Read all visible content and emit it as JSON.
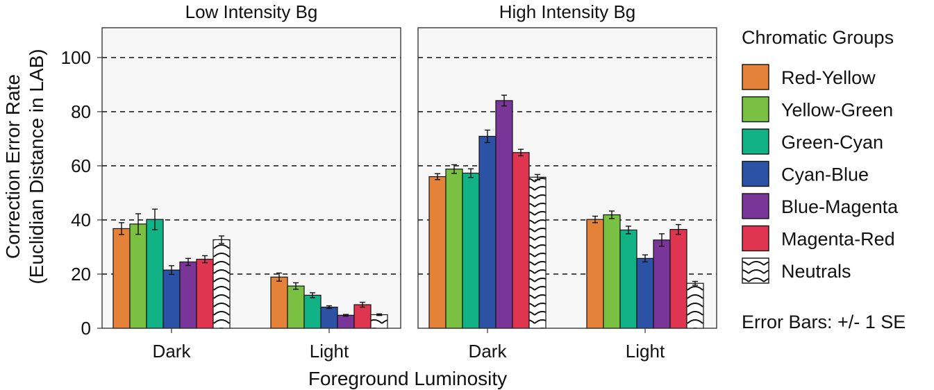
{
  "chart_data": {
    "type": "bar",
    "facets": [
      "Low Intensity Bg",
      "High Intensity Bg"
    ],
    "categories": [
      "Dark",
      "Light"
    ],
    "xlabel": "Foreground Luminosity",
    "ylabel_line1": "Correction Error Rate",
    "ylabel_line2": "(Euclidian Distance in LAB)",
    "ylim": [
      0,
      111
    ],
    "yticks": [
      "0",
      "20",
      "40",
      "60",
      "80",
      "100"
    ],
    "ytick_values": [
      0,
      20,
      40,
      60,
      80,
      100
    ],
    "gridlines": [
      20,
      40,
      60,
      80,
      100
    ],
    "grid_style": "dashed",
    "legend_title": "Chromatic Groups",
    "legend_position": "right",
    "note": "Error Bars: +/- 1 SE",
    "series": [
      {
        "name": "Red-Yellow",
        "color": "#E5823A",
        "pattern": "none",
        "values": [
          [
            36.8,
            18.9
          ],
          [
            56.0,
            40.2
          ]
        ],
        "se": [
          [
            2.2,
            1.5
          ],
          [
            1.1,
            1.2
          ]
        ]
      },
      {
        "name": "Yellow-Green",
        "color": "#7AC143",
        "pattern": "none",
        "values": [
          [
            38.5,
            15.6
          ],
          [
            58.8,
            41.9
          ]
        ],
        "se": [
          [
            3.8,
            1.2
          ],
          [
            1.6,
            1.4
          ]
        ]
      },
      {
        "name": "Green-Cyan",
        "color": "#11B386",
        "pattern": "none",
        "values": [
          [
            40.2,
            12.2
          ],
          [
            57.3,
            36.3
          ]
        ],
        "se": [
          [
            3.8,
            0.9
          ],
          [
            1.6,
            1.4
          ]
        ]
      },
      {
        "name": "Cyan-Blue",
        "color": "#2C52A6",
        "pattern": "none",
        "values": [
          [
            21.5,
            7.8
          ],
          [
            70.9,
            25.8
          ]
        ],
        "se": [
          [
            1.6,
            0.5
          ],
          [
            2.3,
            1.3
          ]
        ]
      },
      {
        "name": "Blue-Magenta",
        "color": "#7A3598",
        "pattern": "none",
        "values": [
          [
            24.5,
            4.8
          ],
          [
            84.1,
            32.6
          ]
        ],
        "se": [
          [
            1.3,
            0.3
          ],
          [
            2.0,
            2.3
          ]
        ]
      },
      {
        "name": "Magenta-Red",
        "color": "#E03550",
        "pattern": "none",
        "values": [
          [
            25.5,
            8.7
          ],
          [
            64.9,
            36.5
          ]
        ],
        "se": [
          [
            1.3,
            0.9
          ],
          [
            1.2,
            1.8
          ]
        ]
      },
      {
        "name": "Neutrals",
        "color": "#FFFFFF",
        "pattern": "hatch",
        "values": [
          [
            32.7,
            5.0
          ],
          [
            55.8,
            16.6
          ]
        ],
        "se": [
          [
            1.4,
            0.3
          ],
          [
            1.0,
            0.7
          ]
        ]
      }
    ]
  }
}
